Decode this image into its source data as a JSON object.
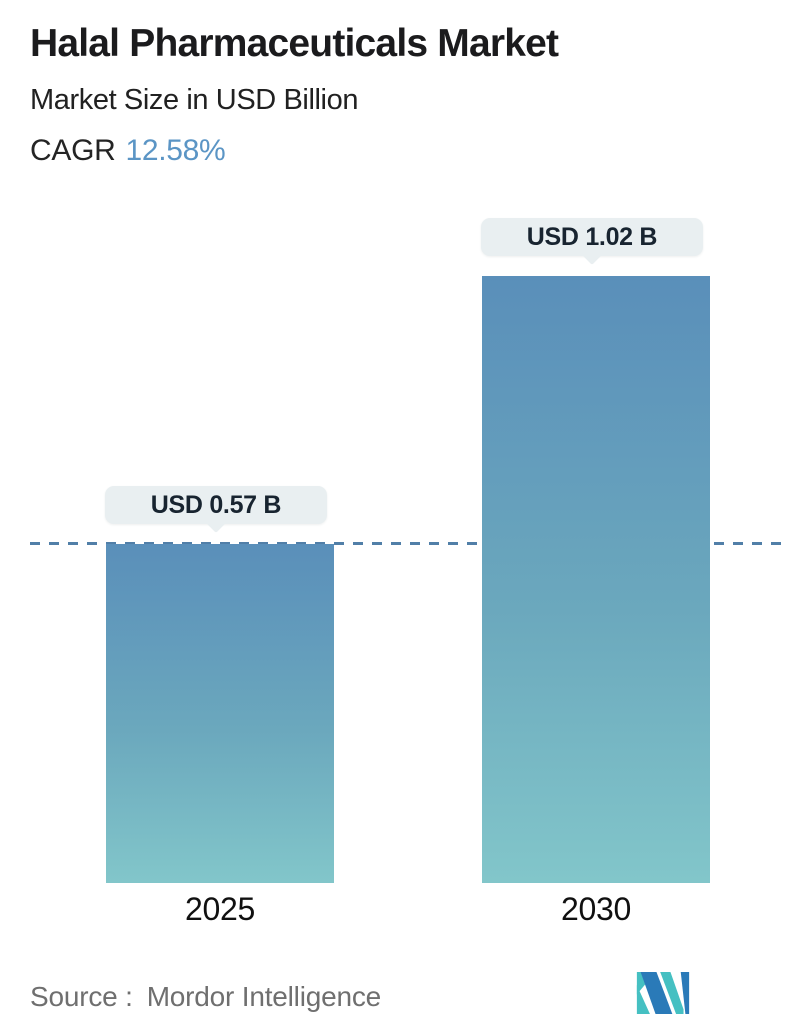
{
  "header": {
    "title": "Halal Pharmaceuticals Market",
    "subtitle": "Market Size in USD Billion",
    "cagr_label": "CAGR",
    "cagr_value": "12.58%"
  },
  "chart_data": {
    "type": "bar",
    "title": "Halal Pharmaceuticals Market",
    "subtitle": "Market Size in USD Billion",
    "unit": "USD Billion",
    "cagr_percent": 12.58,
    "categories": [
      "2025",
      "2030"
    ],
    "values": [
      0.57,
      1.02
    ],
    "value_labels": [
      "USD 0.57 B",
      "USD 1.02 B"
    ],
    "reference_line": {
      "value": 0.57,
      "style": "dashed"
    },
    "ylim": [
      0,
      1.02
    ],
    "grid": false,
    "legend": false,
    "colors": {
      "bar_gradient_top": "#5a8fba",
      "bar_gradient_bottom": "#82c6ca",
      "dashed_line": "#517fa8",
      "tooltip_background": "#e9eff1",
      "tooltip_text": "#182430",
      "cagr_accent": "#5b95c5"
    }
  },
  "footer": {
    "source_label": "Source :",
    "source_value": "Mordor Intelligence",
    "logo_name": "mordor-intelligence-logo",
    "logo_colors": {
      "teal": "#45c0c2",
      "blue": "#2a7ab8"
    }
  }
}
